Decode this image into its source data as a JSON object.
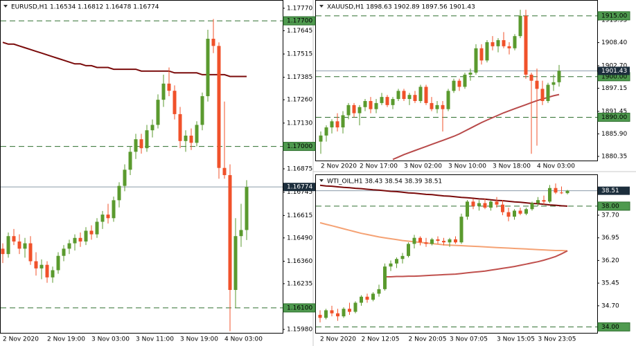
{
  "chart_data": [
    {
      "type": "candlestick",
      "title": "EURUSD,H1  1.16534 1.16812 1.16478 1.16774",
      "categories": [
        "2 Nov 2020",
        null,
        null,
        null,
        null,
        null,
        null,
        null,
        "2 Nov 19:00",
        null,
        null,
        null,
        null,
        null,
        null,
        null,
        "3 Nov 03:00",
        null,
        null,
        null,
        null,
        null,
        null,
        null,
        "3 Nov 11:00",
        null,
        null,
        null,
        null,
        null,
        null,
        null,
        "3 Nov 19:00",
        null,
        null,
        null,
        null,
        null,
        null,
        null,
        "4 Nov 03:00",
        null,
        null,
        null,
        null
      ],
      "open": [
        1.1643,
        1.164,
        1.165,
        1.1647,
        1.1643,
        1.1646,
        1.1636,
        1.1632,
        1.1634,
        1.1627,
        1.1631,
        1.1639,
        1.1643,
        1.1646,
        1.1649,
        1.1647,
        1.1653,
        1.1651,
        1.1658,
        1.1662,
        1.166,
        1.167,
        1.1678,
        1.1687,
        1.1697,
        1.1704,
        1.1699,
        1.1709,
        1.1712,
        1.1726,
        1.1735,
        1.1731,
        1.1718,
        1.1703,
        1.1706,
        1.1702,
        1.1712,
        1.1728,
        1.176,
        1.1756,
        1.1688,
        1.1684,
        1.162,
        1.165,
        1.16534
      ],
      "high": [
        1.1646,
        1.1652,
        1.1654,
        1.1651,
        1.1649,
        1.165,
        1.1641,
        1.1637,
        1.1636,
        1.1633,
        1.1641,
        1.1645,
        1.1648,
        1.1651,
        1.1652,
        1.1655,
        1.1656,
        1.166,
        1.1664,
        1.1668,
        1.1672,
        1.168,
        1.169,
        1.17,
        1.1707,
        1.1707,
        1.1712,
        1.1715,
        1.1729,
        1.174,
        1.1744,
        1.1734,
        1.1722,
        1.1709,
        1.171,
        1.1714,
        1.173,
        1.1765,
        1.1771,
        1.1758,
        1.1725,
        1.169,
        1.166,
        1.1668,
        1.16812
      ],
      "low": [
        1.1635,
        1.1638,
        1.1645,
        1.164,
        1.1638,
        1.1634,
        1.1628,
        1.1626,
        1.1624,
        1.1624,
        1.1629,
        1.1636,
        1.164,
        1.1642,
        1.1644,
        1.1645,
        1.1648,
        1.1649,
        1.1654,
        1.1657,
        1.1658,
        1.1666,
        1.1675,
        1.1684,
        1.1693,
        1.1696,
        1.1697,
        1.1705,
        1.171,
        1.1722,
        1.1728,
        1.1715,
        1.1699,
        1.1697,
        1.1698,
        1.17,
        1.1709,
        1.1725,
        1.1752,
        1.1682,
        1.1682,
        1.1597,
        1.161,
        1.1644,
        1.16478
      ],
      "close": [
        1.164,
        1.165,
        1.1647,
        1.1643,
        1.1646,
        1.1636,
        1.1632,
        1.1634,
        1.1627,
        1.1631,
        1.1639,
        1.1643,
        1.1646,
        1.1649,
        1.1647,
        1.1653,
        1.1651,
        1.1658,
        1.1662,
        1.166,
        1.167,
        1.1678,
        1.1687,
        1.1697,
        1.1704,
        1.1699,
        1.1709,
        1.1712,
        1.1726,
        1.1735,
        1.1731,
        1.1718,
        1.1703,
        1.1706,
        1.1702,
        1.1712,
        1.1728,
        1.176,
        1.1756,
        1.1688,
        1.1684,
        1.162,
        1.165,
        1.16534,
        1.16774
      ],
      "up_color": "#5a9a2e",
      "down_color": "#f0512a",
      "lines": [
        {
          "color": "#7a0a0a",
          "values": [
            1.1758,
            1.1757,
            1.1757,
            1.1756,
            1.1755,
            1.1754,
            1.1753,
            1.1752,
            1.1751,
            1.175,
            1.1749,
            1.1748,
            1.1747,
            1.1746,
            1.1746,
            1.1745,
            1.1745,
            1.1744,
            1.1744,
            1.1744,
            1.1743,
            1.1743,
            1.1743,
            1.1743,
            1.1743,
            1.1742,
            1.1742,
            1.1742,
            1.1742,
            1.1742,
            1.1742,
            1.1741,
            1.1741,
            1.1741,
            1.1741,
            1.1741,
            1.174,
            1.174,
            1.174,
            1.174,
            1.174,
            1.1739,
            1.1739,
            1.1739,
            1.1739
          ]
        }
      ],
      "levels": [
        {
          "value": 1.177,
          "label": "1.17700"
        },
        {
          "value": 1.17,
          "label": "1.17000"
        },
        {
          "value": 1.161,
          "label": "1.16100"
        }
      ],
      "level_color": "#2d6e2d",
      "level_box_color": "#4f9a4f",
      "current": 1.16774,
      "current_color": "#1c2e3c",
      "ylim": [
        1.15957,
        1.17816
      ],
      "yticks": [
        {
          "value": 1.1777,
          "label": "1.17770"
        },
        1.17645,
        1.17515,
        1.17385,
        {
          "value": 1.1726,
          "label": "1.17260"
        },
        {
          "value": 1.1713,
          "label": "1.17130"
        },
        1.16875,
        1.16745,
        1.16615,
        {
          "value": 1.1649,
          "label": "1.16490"
        },
        {
          "value": 1.1636,
          "label": "1.16360"
        },
        1.16235,
        {
          "value": 1.1598,
          "label": "1.15980"
        }
      ]
    },
    {
      "type": "candlestick",
      "title": "XAUUSD,H1  1898.63 1902.89 1897.56 1901.43",
      "categories": [
        "2 Nov 2020",
        null,
        null,
        null,
        null,
        null,
        null,
        "2 Nov 17:00",
        null,
        null,
        null,
        null,
        null,
        null,
        null,
        "3 Nov 02:00",
        null,
        null,
        null,
        null,
        null,
        null,
        null,
        "3 Nov 10:00",
        null,
        null,
        null,
        null,
        null,
        null,
        null,
        "3 Nov 18:00",
        null,
        null,
        null,
        null,
        null,
        null,
        null,
        "4 Nov 03:00",
        null,
        null,
        null,
        null
      ],
      "open": [
        1884.0,
        1885.5,
        1887.5,
        1889.0,
        1887.5,
        1890.5,
        1893.0,
        1891.0,
        1892.5,
        1894.0,
        1892.0,
        1893.5,
        1895.0,
        1893.0,
        1894.5,
        1896.5,
        1894.5,
        1895.5,
        1894.0,
        1897.5,
        1893.5,
        1892.0,
        1893.0,
        1892.0,
        1896.5,
        1899.0,
        1897.5,
        1900.5,
        1901.0,
        1907.0,
        1904.0,
        1908.5,
        1907.5,
        1909.0,
        1907.5,
        1907.0,
        1910.0,
        1915.0,
        1900.5,
        1899.0,
        1897.0,
        1894.0,
        1898.0,
        1898.63
      ],
      "high": [
        1886.5,
        1888.0,
        1889.5,
        1891.0,
        1891.5,
        1893.5,
        1893.5,
        1893.0,
        1894.5,
        1895.0,
        1894.5,
        1896.0,
        1895.5,
        1895.0,
        1897.0,
        1897.0,
        1896.0,
        1896.5,
        1898.0,
        1898.0,
        1895.0,
        1894.0,
        1894.0,
        1897.0,
        1899.5,
        1899.5,
        1901.0,
        1902.0,
        1908.0,
        1908.0,
        1909.0,
        1910.0,
        1909.5,
        1911.0,
        1908.5,
        1910.5,
        1916.5,
        1916.5,
        1901.0,
        1902.0,
        1899.0,
        1898.5,
        1900.5,
        1902.89
      ],
      "low": [
        1881.0,
        1884.0,
        1886.0,
        1886.5,
        1886.0,
        1889.5,
        1890.0,
        1888.0,
        1891.5,
        1891.0,
        1891.0,
        1893.0,
        1892.5,
        1892.0,
        1894.0,
        1894.0,
        1893.0,
        1893.5,
        1893.5,
        1893.0,
        1891.5,
        1891.0,
        1886.5,
        1891.5,
        1896.0,
        1896.5,
        1897.0,
        1899.0,
        1900.5,
        1903.0,
        1903.5,
        1906.5,
        1906.0,
        1907.0,
        1905.5,
        1906.5,
        1909.5,
        1899.5,
        1881.0,
        1883.0,
        1893.0,
        1893.5,
        1896.5,
        1897.56
      ],
      "close": [
        1885.5,
        1887.5,
        1889.0,
        1887.5,
        1890.5,
        1893.0,
        1891.0,
        1892.5,
        1894.0,
        1892.0,
        1893.5,
        1895.0,
        1893.0,
        1894.5,
        1896.5,
        1894.5,
        1895.5,
        1894.0,
        1897.5,
        1893.5,
        1892.0,
        1893.0,
        1892.0,
        1896.5,
        1899.0,
        1897.5,
        1900.5,
        1901.0,
        1907.0,
        1904.0,
        1908.5,
        1907.5,
        1909.0,
        1907.5,
        1907.0,
        1910.0,
        1915.0,
        1900.5,
        1899.0,
        1897.0,
        1894.0,
        1898.0,
        1898.63,
        1901.43
      ],
      "up_color": "#5a9a2e",
      "down_color": "#f0512a",
      "lines": [
        {
          "color": "#b84a4a",
          "values": [
            null,
            null,
            null,
            null,
            null,
            null,
            null,
            null,
            null,
            null,
            null,
            null,
            null,
            1879.6,
            1880.2,
            1880.8,
            1881.3,
            1881.8,
            1882.3,
            1882.8,
            1883.3,
            1883.8,
            1884.3,
            1884.8,
            1885.3,
            1885.9,
            1886.6,
            1887.3,
            1888.0,
            1888.7,
            1889.3,
            1889.9,
            1890.5,
            1891.1,
            1891.6,
            1892.1,
            1892.6,
            1893.1,
            1893.6,
            1894.1,
            1894.5,
            1894.9,
            1895.3,
            1895.6
          ]
        }
      ],
      "levels": [
        {
          "value": 1915,
          "label": "1915.00"
        },
        {
          "value": 1900,
          "label": "1900.00"
        },
        {
          "value": 1890,
          "label": "1890.00"
        }
      ],
      "level_color": "#2d6e2d",
      "level_box_color": "#4f9a4f",
      "current": 1901.43,
      "current_color": "#1c2e3c",
      "ylim": [
        1879.33,
        1918.9
      ],
      "yticks": [
        1913.95,
        {
          "value": 1908.4,
          "label": "1908.40"
        },
        {
          "value": 1902.7,
          "label": "1902.70"
        },
        1897.15,
        1891.45,
        {
          "value": 1885.9,
          "label": "1885.90"
        },
        1880.35
      ]
    },
    {
      "type": "candlestick",
      "title": "WTI_OIL,H1  38.43 38.54 38.39 38.51",
      "categories": [
        "2 Nov 2020",
        null,
        null,
        null,
        null,
        null,
        null,
        "2 Nov 12:05",
        null,
        null,
        null,
        null,
        null,
        null,
        null,
        "2 Nov 20:05",
        null,
        null,
        null,
        null,
        null,
        null,
        "3 Nov 07:05",
        null,
        null,
        null,
        null,
        null,
        null,
        null,
        "3 Nov 15:05",
        null,
        null,
        null,
        null,
        null,
        null,
        "3 Nov 23:05",
        null,
        null,
        null,
        null,
        null
      ],
      "open": [
        34.4,
        34.3,
        34.55,
        34.45,
        34.35,
        34.6,
        34.5,
        34.8,
        35.0,
        34.9,
        35.1,
        35.25,
        36.0,
        36.1,
        36.25,
        36.35,
        36.75,
        36.95,
        36.8,
        36.75,
        36.9,
        36.85,
        36.8,
        36.9,
        36.8,
        37.65,
        38.15,
        38.0,
        38.1,
        37.95,
        38.15,
        38.05,
        37.8,
        37.65,
        37.85,
        37.75,
        37.9,
        38.1,
        38.2,
        38.15,
        38.6,
        38.45,
        38.43
      ],
      "high": [
        34.55,
        34.6,
        34.7,
        34.6,
        34.65,
        34.8,
        34.85,
        35.05,
        35.1,
        35.15,
        35.4,
        36.1,
        36.2,
        36.3,
        36.45,
        36.8,
        37.05,
        37.0,
        36.95,
        36.95,
        37.0,
        36.95,
        36.95,
        37.0,
        37.75,
        38.2,
        38.25,
        38.2,
        38.25,
        38.2,
        38.3,
        38.2,
        37.95,
        37.9,
        37.95,
        37.95,
        38.15,
        38.3,
        38.35,
        38.7,
        38.75,
        38.65,
        38.54
      ],
      "low": [
        34.15,
        34.25,
        34.35,
        34.2,
        34.3,
        34.4,
        34.45,
        34.7,
        34.8,
        34.85,
        35.0,
        35.2,
        35.85,
        35.95,
        36.1,
        36.3,
        36.6,
        36.7,
        36.65,
        36.7,
        36.75,
        36.7,
        36.65,
        36.75,
        36.75,
        37.55,
        37.9,
        37.85,
        37.9,
        37.85,
        37.95,
        37.7,
        37.5,
        37.55,
        37.7,
        37.7,
        37.85,
        38.0,
        38.05,
        38.1,
        38.4,
        38.4,
        38.39
      ],
      "close": [
        34.3,
        34.55,
        34.45,
        34.35,
        34.6,
        34.5,
        34.8,
        35.0,
        34.9,
        35.1,
        35.25,
        36.0,
        36.1,
        36.25,
        36.35,
        36.75,
        36.95,
        36.8,
        36.75,
        36.9,
        36.85,
        36.8,
        36.9,
        36.8,
        37.65,
        38.15,
        38.0,
        38.1,
        37.95,
        38.15,
        38.05,
        37.8,
        37.65,
        37.85,
        37.75,
        37.9,
        38.1,
        38.2,
        38.15,
        38.6,
        38.45,
        38.43,
        38.51
      ],
      "up_color": "#5a9a2e",
      "down_color": "#f0512a",
      "lines": [
        {
          "color": "#7a0a0a",
          "values": [
            38.69,
            38.67,
            38.66,
            38.64,
            38.62,
            38.61,
            38.59,
            38.58,
            38.56,
            38.54,
            38.53,
            38.51,
            38.49,
            38.48,
            38.46,
            38.44,
            38.43,
            38.41,
            38.39,
            38.38,
            38.36,
            38.34,
            38.33,
            38.31,
            38.29,
            38.28,
            38.26,
            38.24,
            38.23,
            38.21,
            38.19,
            38.18,
            38.16,
            38.14,
            38.13,
            38.11,
            38.09,
            38.08,
            38.06,
            38.04,
            38.03,
            38.01,
            38.0
          ]
        },
        {
          "color": "#f5a274",
          "values": [
            37.45,
            37.4,
            37.35,
            37.3,
            37.25,
            37.2,
            37.15,
            37.1,
            37.06,
            37.02,
            36.98,
            36.95,
            36.92,
            36.89,
            36.86,
            36.84,
            36.82,
            36.8,
            36.78,
            36.76,
            36.74,
            36.72,
            36.71,
            36.7,
            36.69,
            36.68,
            36.67,
            36.66,
            36.65,
            36.64,
            36.63,
            36.62,
            36.61,
            36.6,
            36.59,
            36.58,
            36.57,
            36.56,
            36.55,
            36.54,
            36.53,
            36.53,
            36.52
          ]
        },
        {
          "color": "#c0504d",
          "values": [
            null,
            null,
            null,
            null,
            null,
            null,
            null,
            null,
            null,
            null,
            null,
            35.66,
            35.66,
            35.67,
            35.67,
            35.68,
            35.68,
            35.69,
            35.7,
            35.71,
            35.72,
            35.73,
            35.74,
            35.75,
            35.77,
            35.79,
            35.81,
            35.83,
            35.85,
            35.88,
            35.91,
            35.94,
            35.97,
            36.0,
            36.04,
            36.08,
            36.12,
            36.16,
            36.21,
            36.27,
            36.33,
            36.42,
            36.52
          ]
        }
      ],
      "levels": [
        {
          "value": 38,
          "label": "38.00"
        },
        {
          "value": 34,
          "label": "34.00"
        }
      ],
      "level_color": "#2d6e2d",
      "level_box_color": "#4f9a4f",
      "current": 38.51,
      "current_color": "#1c2e3c",
      "ylim": [
        33.78,
        38.96
      ],
      "yticks": [
        {
          "value": 37.7,
          "label": "37.70"
        },
        36.95,
        {
          "value": 36.2,
          "label": "36.20"
        },
        35.45,
        {
          "value": 34.7,
          "label": "34.70"
        }
      ]
    }
  ]
}
